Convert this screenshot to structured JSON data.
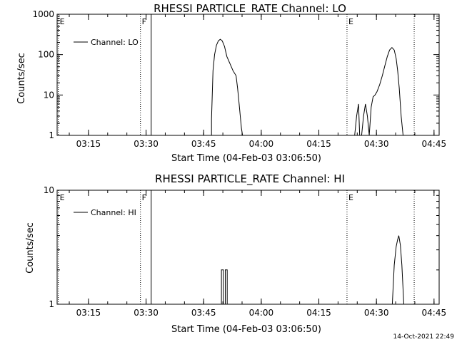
{
  "chart_data": [
    {
      "type": "line",
      "title": "RHESSI PARTICLE_RATE Channel: LO",
      "xlabel": "Start Time (04-Feb-03 03:06:50)",
      "ylabel": "Counts/sec",
      "yscale": "log",
      "ylim": [
        1,
        1000
      ],
      "y_ticks": [
        {
          "value": 1,
          "label": "1"
        },
        {
          "value": 10,
          "label": "10"
        },
        {
          "value": 100,
          "label": "100"
        },
        {
          "value": 1000,
          "label": "1000"
        }
      ],
      "xlim_minutes": [
        0,
        41
      ],
      "x_ticks": [
        {
          "value": 8.1667,
          "label": "03:15"
        },
        {
          "value": 23.1667,
          "label": "03:30"
        },
        {
          "value": 38.1667,
          "label": "03:45"
        },
        {
          "value": 53.1667,
          "label": "04:00"
        },
        {
          "value": 68.1667,
          "label": "04:15"
        },
        {
          "value": 83.1667,
          "label": "04:30"
        },
        {
          "value": 98.1667,
          "label": "04:45"
        }
      ],
      "legend": {
        "position": "top-left",
        "entries": [
          "Channel: LO"
        ]
      },
      "markers": [
        {
          "label": "E",
          "x": 0.3,
          "style": "dotted"
        },
        {
          "label": "F",
          "x": 21.7,
          "style": "dotted"
        },
        {
          "label": "",
          "x": 24.5,
          "style": "solid"
        },
        {
          "label": "E",
          "x": 75.5,
          "style": "dotted"
        },
        {
          "label": "",
          "x": 93.0,
          "style": "dotted"
        }
      ],
      "series": [
        {
          "name": "Channel: LO",
          "x": [
            40.2,
            40.2,
            40.6,
            41.0,
            41.5,
            42.0,
            42.5,
            43.0,
            43.6,
            44.2,
            45.0,
            45.8,
            46.6,
            47.0,
            47.4,
            47.7,
            48.0,
            48.3
          ],
          "y": [
            1,
            2.5,
            40,
            100,
            170,
            220,
            240,
            220,
            160,
            90,
            60,
            40,
            30,
            15,
            6,
            3,
            1.5,
            1
          ]
        },
        {
          "name": "Channel: LO",
          "x": [
            77.5,
            78.0,
            78.5,
            78.8,
            79.3,
            79.8,
            80.3,
            80.8,
            81.3,
            81.8,
            82.3,
            82.8,
            83.3,
            84.0,
            84.7,
            85.4,
            86.0,
            86.6,
            87.2,
            87.8,
            88.3,
            88.7,
            89.1,
            89.6,
            90.1
          ],
          "y": [
            1,
            3,
            6,
            1,
            1,
            3,
            6,
            3,
            1,
            5,
            9,
            10,
            12,
            18,
            30,
            55,
            90,
            130,
            150,
            130,
            80,
            40,
            15,
            3,
            1
          ]
        }
      ]
    },
    {
      "type": "line",
      "title": "RHESSI PARTICLE_RATE Channel: HI",
      "xlabel": "Start Time (04-Feb-03 03:06:50)",
      "ylabel": "Counts/sec",
      "yscale": "log",
      "ylim": [
        1,
        10
      ],
      "y_ticks": [
        {
          "value": 1,
          "label": "1"
        },
        {
          "value": 10,
          "label": "10"
        }
      ],
      "xlim_minutes": [
        0,
        41
      ],
      "x_ticks": [
        {
          "value": 8.1667,
          "label": "03:15"
        },
        {
          "value": 23.1667,
          "label": "03:30"
        },
        {
          "value": 38.1667,
          "label": "03:45"
        },
        {
          "value": 53.1667,
          "label": "04:00"
        },
        {
          "value": 68.1667,
          "label": "04:15"
        },
        {
          "value": 83.1667,
          "label": "04:30"
        },
        {
          "value": 98.1667,
          "label": "04:45"
        }
      ],
      "legend": {
        "position": "top-left",
        "entries": [
          "Channel: HI"
        ]
      },
      "markers": [
        {
          "label": "E",
          "x": 0.3,
          "style": "dotted"
        },
        {
          "label": "F",
          "x": 21.7,
          "style": "dotted"
        },
        {
          "label": "",
          "x": 24.5,
          "style": "solid"
        },
        {
          "label": "E",
          "x": 75.5,
          "style": "dotted"
        },
        {
          "label": "",
          "x": 93.0,
          "style": "dotted"
        }
      ],
      "series": [
        {
          "name": "Channel: HI",
          "x": [
            42.8,
            42.8,
            43.3,
            43.3,
            43.8,
            43.8,
            44.3,
            44.3
          ],
          "y": [
            1,
            2,
            2,
            1,
            1,
            2,
            2,
            1
          ]
        },
        {
          "name": "Channel: HI",
          "x": [
            87.3,
            87.8,
            88.3,
            88.7,
            89.0,
            89.4,
            89.8,
            90.3
          ],
          "y": [
            1,
            2.2,
            3.2,
            3.7,
            4,
            3.3,
            2.2,
            1
          ]
        }
      ]
    }
  ],
  "timestamp": "14-Oct-2021 22:49"
}
